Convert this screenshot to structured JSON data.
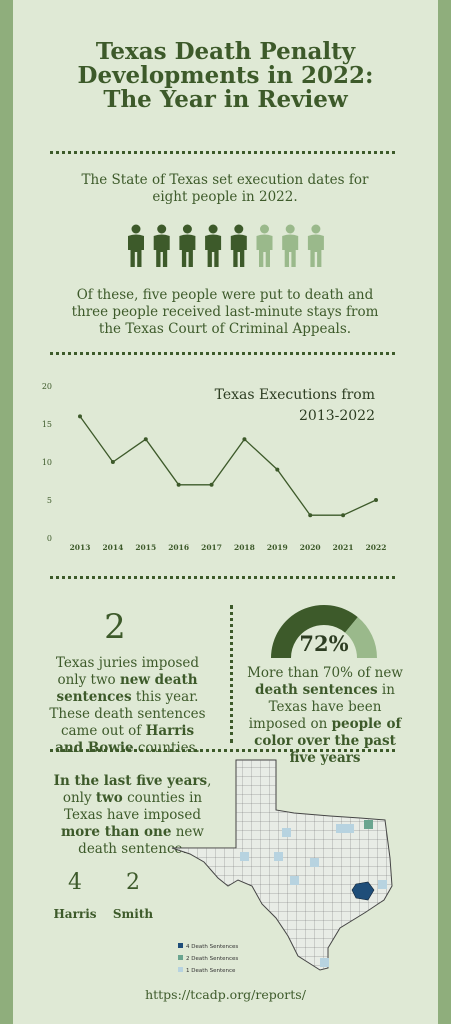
{
  "title_lines": [
    "Texas Death Penalty",
    "Developments in 2022:",
    "The Year in Review"
  ],
  "intro": "The State of Texas set execution dates for eight people in 2022.",
  "people": {
    "total": 8,
    "executed": 5,
    "executed_color": "#3d5a2a",
    "stayed_color": "#9ab98b"
  },
  "outcome": "Of these, five people were put to death and three people received last-minute stays from the Texas Court of Criminal Appeals.",
  "chart_data": {
    "type": "line",
    "title": "Texas Executions from 2013-2022",
    "title_lines": [
      "Texas Executions from",
      "2013-2022"
    ],
    "x": [
      "2013",
      "2014",
      "2015",
      "2016",
      "2017",
      "2018",
      "2019",
      "2020",
      "2021",
      "2022"
    ],
    "values": [
      16,
      10,
      13,
      7,
      7,
      13,
      9,
      3,
      3,
      5
    ],
    "ylim": [
      0,
      20
    ],
    "yticks": [
      0,
      5,
      10,
      15,
      20
    ],
    "grid": false,
    "line_color": "#3d5a2a"
  },
  "sentences": {
    "number": "2",
    "pre": "Texas juries imposed only two ",
    "bold1": "new death sentences",
    "mid": " this year. These death sentences came out of ",
    "bold2": "Harris and Bowie",
    "post": " counties."
  },
  "gauge": {
    "percent": 72,
    "label": "72%",
    "fill_color": "#3d5a2a",
    "track_color": "#9ab98b",
    "pre": "More than 70% of new ",
    "bold1": "death sentences",
    "mid": " in Texas have been imposed on ",
    "bold2": "people of color over the past five years"
  },
  "five_year": {
    "bold1": "In the last five years",
    "t1": ", only ",
    "bold2": "two",
    "t2": " counties in Texas have imposed ",
    "bold3": "more than one",
    "t3": " new death sentence."
  },
  "counties": [
    {
      "count": "4",
      "name": "Harris"
    },
    {
      "count": "2",
      "name": "Smith"
    }
  ],
  "map_legend": [
    {
      "label": "4 Death Sentences",
      "color": "#1f4e79"
    },
    {
      "label": "2 Death Sentences",
      "color": "#6aa58f"
    },
    {
      "label": "1 Death Sentence",
      "color": "#b7d3e0"
    }
  ],
  "url": "https://tcadp.org/reports/"
}
